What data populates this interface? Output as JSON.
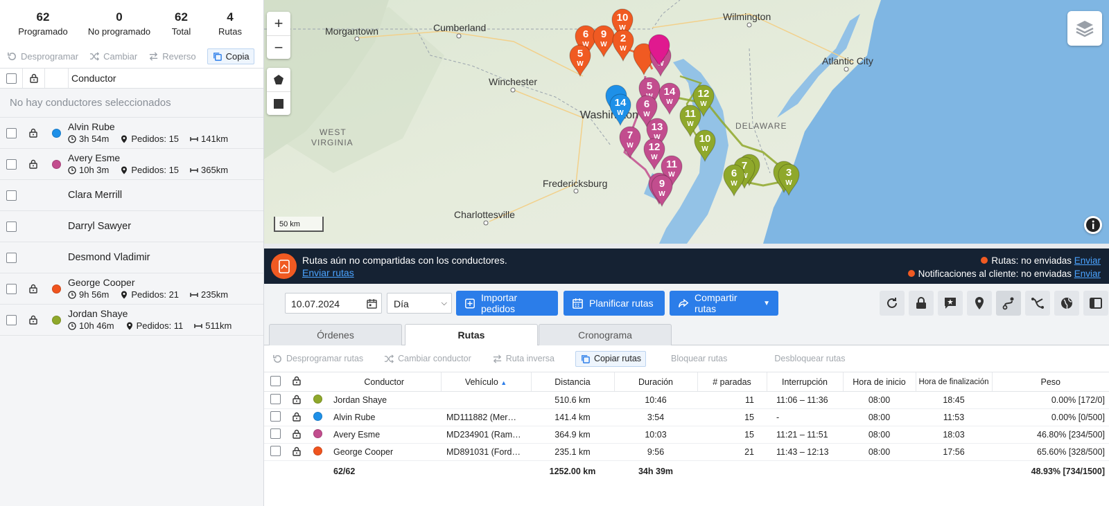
{
  "stats": [
    {
      "value": "62",
      "label": "Programado"
    },
    {
      "value": "0",
      "label": "No programado"
    },
    {
      "value": "62",
      "label": "Total"
    },
    {
      "value": "4",
      "label": "Rutas"
    }
  ],
  "left_toolbar": {
    "unschedule": "Desprogramar",
    "change": "Cambiar",
    "reverse": "Reverso",
    "copy": "Copia"
  },
  "driver_header": "Conductor",
  "no_selection": "No hay conductores seleccionados",
  "drivers": [
    {
      "name": "Alvin Rube",
      "time": "3h 54m",
      "orders": "Pedidos: 15",
      "distance": "141km",
      "color": "#1e90e8",
      "locked": true
    },
    {
      "name": "Avery Esme",
      "time": "10h 3m",
      "orders": "Pedidos: 15",
      "distance": "365km",
      "color": "#c24d8e",
      "locked": true
    },
    {
      "name": "Clara Merrill",
      "time": "",
      "orders": "",
      "distance": "",
      "color": "",
      "locked": false
    },
    {
      "name": "Darryl Sawyer",
      "time": "",
      "orders": "",
      "distance": "",
      "color": "",
      "locked": false
    },
    {
      "name": "Desmond Vladimir",
      "time": "",
      "orders": "",
      "distance": "",
      "color": "",
      "locked": false
    },
    {
      "name": "George Cooper",
      "time": "9h 56m",
      "orders": "Pedidos: 21",
      "distance": "235km",
      "color": "#f0541e",
      "locked": true
    },
    {
      "name": "Jordan Shaye",
      "time": "10h 46m",
      "orders": "Pedidos: 11",
      "distance": "511km",
      "color": "#8fa82b",
      "locked": true
    }
  ],
  "map": {
    "labels": [
      "Morgantown",
      "Cumberland",
      "Wilmington",
      "Atlantic City",
      "Winchester",
      "Washington",
      "WEST",
      "VIRGINIA",
      "DELAWARE",
      "Fredericksburg",
      "Charlottesville"
    ],
    "scale": "50 km",
    "zoom_in": "+",
    "zoom_out": "−"
  },
  "banner": {
    "message": "Rutas aún no compartidas con los conductores.",
    "link": "Enviar rutas",
    "routes_status": "Rutas: no enviadas",
    "routes_link": "Enviar",
    "notif_status": "Notificaciones al cliente: no enviadas",
    "notif_link": "Enviar"
  },
  "controls": {
    "date": "10.07.2024",
    "period": "Día",
    "import": "Importar pedidos",
    "plan": "Planificar rutas",
    "share": "Compartir rutas"
  },
  "tabs": [
    "Órdenes",
    "Rutas",
    "Cronograma"
  ],
  "routes_toolbar": {
    "unschedule": "Desprogramar rutas",
    "change_driver": "Cambiar conductor",
    "reverse": "Ruta inversa",
    "copy": "Copiar rutas",
    "lock": "Bloquear rutas",
    "unlock": "Desbloquear rutas"
  },
  "columns": [
    "Conductor",
    "Vehículo",
    "Distancia",
    "Duración",
    "# paradas",
    "Interrupción",
    "Hora de inicio",
    "Hora de finalización",
    "Peso"
  ],
  "routes": [
    {
      "driver": "Jordan Shaye",
      "vehicle": "",
      "distance": "510.6 km",
      "duration": "10:46",
      "stops": "11",
      "break": "11:06 – 11:36",
      "start": "08:00",
      "end": "18:45",
      "weight": "0.00% [172/0]",
      "color": "#8fa82b"
    },
    {
      "driver": "Alvin Rube",
      "vehicle": "MD111882 (Mer…",
      "distance": "141.4 km",
      "duration": "3:54",
      "stops": "15",
      "break": "-",
      "start": "08:00",
      "end": "11:53",
      "weight": "0.00% [0/500]",
      "color": "#1e90e8"
    },
    {
      "driver": "Avery Esme",
      "vehicle": "MD234901 (Ram…",
      "distance": "364.9 km",
      "duration": "10:03",
      "stops": "15",
      "break": "11:21 – 11:51",
      "start": "08:00",
      "end": "18:03",
      "weight": "46.80% [234/500]",
      "color": "#c24d8e"
    },
    {
      "driver": "George Cooper",
      "vehicle": "MD891031 (Ford…",
      "distance": "235.1 km",
      "duration": "9:56",
      "stops": "21",
      "break": "11:43 – 12:13",
      "start": "08:00",
      "end": "17:56",
      "weight": "65.60% [328/500]",
      "color": "#f0541e"
    }
  ],
  "totals": {
    "orders": "62/62",
    "distance": "1252.00 km",
    "duration": "34h 39m",
    "weight": "48.93% [734/1500]"
  }
}
